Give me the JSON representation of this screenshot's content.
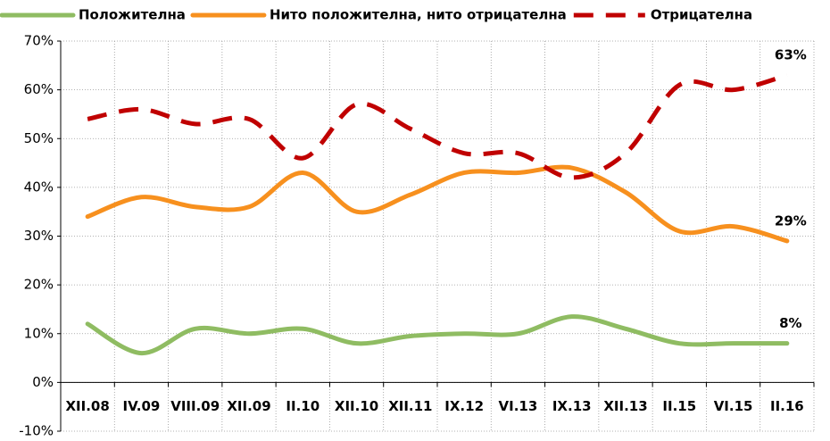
{
  "chart_data": {
    "type": "line",
    "categories": [
      "XII.08",
      "IV.09",
      "VIII.09",
      "XII.09",
      "II.10",
      "XII.10",
      "XII.11",
      "IX.12",
      "VI.13",
      "IX.13",
      "XII.13",
      "II.15",
      "VI.15",
      "II.16"
    ],
    "series": [
      {
        "name": "Положителна",
        "color": "#8fbc62",
        "dash": false,
        "values": [
          12,
          6,
          11,
          10,
          11,
          8,
          9.5,
          10,
          10,
          13.5,
          11,
          8,
          8,
          8
        ],
        "value_labels": [
          null,
          null,
          null,
          null,
          null,
          null,
          null,
          null,
          null,
          null,
          null,
          null,
          null,
          "8%"
        ]
      },
      {
        "name": "Нито положителна, нито отрицателна",
        "color": "#f7901e",
        "dash": false,
        "values": [
          34,
          38,
          36,
          36,
          43,
          35,
          38.5,
          43,
          43,
          44,
          39,
          31,
          32,
          29
        ],
        "value_labels": [
          null,
          null,
          null,
          null,
          null,
          null,
          null,
          null,
          null,
          null,
          null,
          null,
          null,
          "29%"
        ]
      },
      {
        "name": "Отрицателна",
        "color": "#c00000",
        "dash": true,
        "values": [
          54,
          56,
          53,
          54,
          46,
          57,
          52,
          47,
          47,
          42,
          47,
          61,
          60,
          63
        ],
        "value_labels": [
          null,
          null,
          null,
          null,
          null,
          null,
          null,
          null,
          null,
          null,
          null,
          null,
          null,
          "63%"
        ]
      }
    ],
    "ylim": [
      -10,
      70
    ],
    "yticks": [
      {
        "value": -10,
        "label": "-10%"
      },
      {
        "value": 0,
        "label": "0%"
      },
      {
        "value": 10,
        "label": "10%"
      },
      {
        "value": 20,
        "label": "20%"
      },
      {
        "value": 30,
        "label": "30%"
      },
      {
        "value": 40,
        "label": "40%"
      },
      {
        "value": 50,
        "label": "50%"
      },
      {
        "value": 60,
        "label": "60%"
      },
      {
        "value": 70,
        "label": "70%"
      }
    ],
    "grid": true,
    "legend": "top"
  }
}
